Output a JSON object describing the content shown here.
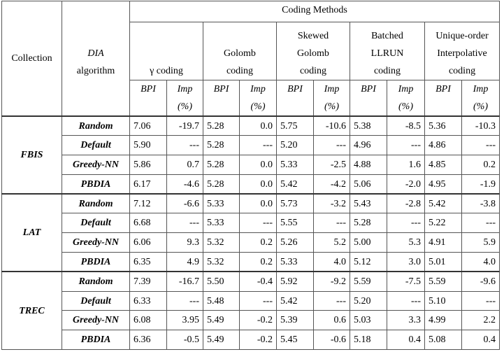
{
  "header": {
    "collection": "Collection",
    "dia": [
      "DIA",
      "algorithm"
    ],
    "coding_methods": "Coding Methods",
    "methods": [
      [
        "γ coding"
      ],
      [
        "Golomb",
        "coding"
      ],
      [
        "Skewed",
        "Golomb",
        "coding"
      ],
      [
        "Batched",
        "LLRUN",
        "coding"
      ],
      [
        "Unique-order",
        "Interpolative",
        "coding"
      ]
    ],
    "subheaders": [
      [
        "BPI"
      ],
      [
        "Imp",
        "(%)"
      ],
      [
        "BPI"
      ],
      [
        "Imp",
        "(%)"
      ],
      [
        "BPI"
      ],
      [
        "Imp",
        "(%)"
      ],
      [
        "BPI"
      ],
      [
        "Imp",
        "(%)"
      ],
      [
        "BPI"
      ],
      [
        "Imp",
        "(%)"
      ]
    ]
  },
  "collections": [
    {
      "name": "FBIS",
      "rows": [
        {
          "algorithm": "Random",
          "cells": [
            "7.06",
            "-19.7",
            "5.28",
            "0.0",
            "5.75",
            "-10.6",
            "5.38",
            "-8.5",
            "5.36",
            "-10.3"
          ]
        },
        {
          "algorithm": "Default",
          "cells": [
            "5.90",
            "---",
            "5.28",
            "---",
            "5.20",
            "---",
            "4.96",
            "---",
            "4.86",
            "---"
          ]
        },
        {
          "algorithm": "Greedy-NN",
          "cells": [
            "5.86",
            "0.7",
            "5.28",
            "0.0",
            "5.33",
            "-2.5",
            "4.88",
            "1.6",
            "4.85",
            "0.2"
          ]
        },
        {
          "algorithm": "PBDIA",
          "cells": [
            "6.17",
            "-4.6",
            "5.28",
            "0.0",
            "5.42",
            "-4.2",
            "5.06",
            "-2.0",
            "4.95",
            "-1.9"
          ]
        }
      ]
    },
    {
      "name": "LAT",
      "rows": [
        {
          "algorithm": "Random",
          "cells": [
            "7.12",
            "-6.6",
            "5.33",
            "0.0",
            "5.73",
            "-3.2",
            "5.43",
            "-2.8",
            "5.42",
            "-3.8"
          ]
        },
        {
          "algorithm": "Default",
          "cells": [
            "6.68",
            "---",
            "5.33",
            "---",
            "5.55",
            "---",
            "5.28",
            "---",
            "5.22",
            "---"
          ]
        },
        {
          "algorithm": "Greedy-NN",
          "cells": [
            "6.06",
            "9.3",
            "5.32",
            "0.2",
            "5.26",
            "5.2",
            "5.00",
            "5.3",
            "4.91",
            "5.9"
          ]
        },
        {
          "algorithm": "PBDIA",
          "cells": [
            "6.35",
            "4.9",
            "5.32",
            "0.2",
            "5.33",
            "4.0",
            "5.12",
            "3.0",
            "5.01",
            "4.0"
          ]
        }
      ]
    },
    {
      "name": "TREC",
      "rows": [
        {
          "algorithm": "Random",
          "cells": [
            "7.39",
            "-16.7",
            "5.50",
            "-0.4",
            "5.92",
            "-9.2",
            "5.59",
            "-7.5",
            "5.59",
            "-9.6"
          ]
        },
        {
          "algorithm": "Default",
          "cells": [
            "6.33",
            "---",
            "5.48",
            "---",
            "5.42",
            "---",
            "5.20",
            "---",
            "5.10",
            "---"
          ]
        },
        {
          "algorithm": "Greedy-NN",
          "cells": [
            "6.08",
            "3.95",
            "5.49",
            "-0.2",
            "5.39",
            "0.6",
            "5.03",
            "3.3",
            "4.99",
            "2.2"
          ]
        },
        {
          "algorithm": "PBDIA",
          "cells": [
            "6.36",
            "-0.5",
            "5.49",
            "-0.2",
            "5.45",
            "-0.6",
            "5.18",
            "0.4",
            "5.08",
            "0.4"
          ]
        }
      ]
    }
  ]
}
